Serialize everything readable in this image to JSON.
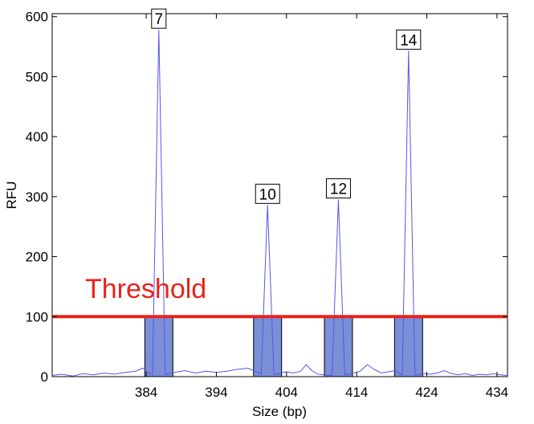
{
  "chart_data": {
    "type": "line",
    "title": "",
    "xlabel": "Size (bp)",
    "ylabel": "RFU",
    "xlim": [
      370.6,
      435.5
    ],
    "ylim": [
      0,
      605
    ],
    "x_ticks": [
      384,
      394,
      404,
      414,
      424,
      434
    ],
    "y_ticks": [
      0,
      100,
      200,
      300,
      400,
      500,
      600
    ],
    "grid": false,
    "threshold": {
      "label": "Threshold",
      "value": 100,
      "color": "#e8231a"
    },
    "trace_color": "#5555ee",
    "bin_color": "#7a8fd6",
    "bins": [
      {
        "label": "7",
        "center": 385.8,
        "half_width": 2.0,
        "peak_height": 578
      },
      {
        "label": "10",
        "center": 401.3,
        "half_width": 2.0,
        "peak_height": 286
      },
      {
        "label": "12",
        "center": 411.4,
        "half_width": 2.0,
        "peak_height": 295
      },
      {
        "label": "14",
        "center": 421.4,
        "half_width": 2.0,
        "peak_height": 543
      }
    ],
    "baseline": [
      [
        370.6,
        2
      ],
      [
        372,
        4
      ],
      [
        373.5,
        1
      ],
      [
        375,
        5
      ],
      [
        376.5,
        3
      ],
      [
        378,
        6
      ],
      [
        379.5,
        4
      ],
      [
        381,
        7
      ],
      [
        382.5,
        9
      ],
      [
        383.5,
        14
      ],
      [
        384.6,
        5
      ],
      [
        388,
        7
      ],
      [
        389.5,
        10
      ],
      [
        391,
        6
      ],
      [
        392.5,
        9
      ],
      [
        394,
        7
      ],
      [
        395.5,
        9
      ],
      [
        397,
        12
      ],
      [
        398.5,
        14
      ],
      [
        399.5,
        9
      ],
      [
        400.4,
        4
      ],
      [
        402.5,
        4
      ],
      [
        404,
        8
      ],
      [
        405,
        6
      ],
      [
        406,
        9
      ],
      [
        406.8,
        20
      ],
      [
        407.6,
        10
      ],
      [
        408.5,
        4
      ],
      [
        409.5,
        3
      ],
      [
        410.4,
        2
      ],
      [
        412.5,
        3
      ],
      [
        413.5,
        6
      ],
      [
        414.5,
        9
      ],
      [
        415.5,
        20
      ],
      [
        416.5,
        12
      ],
      [
        417.5,
        6
      ],
      [
        418.5,
        8
      ],
      [
        419.5,
        10
      ],
      [
        420.4,
        3
      ],
      [
        422.5,
        3
      ],
      [
        423.5,
        5
      ],
      [
        424.5,
        4
      ],
      [
        425.5,
        6
      ],
      [
        426.5,
        10
      ],
      [
        427.5,
        5
      ],
      [
        428.5,
        3
      ],
      [
        429.5,
        5
      ],
      [
        430.5,
        2
      ],
      [
        431.5,
        4
      ],
      [
        432.5,
        3
      ],
      [
        433.5,
        5
      ],
      [
        434.5,
        3
      ],
      [
        435.5,
        2
      ]
    ]
  }
}
